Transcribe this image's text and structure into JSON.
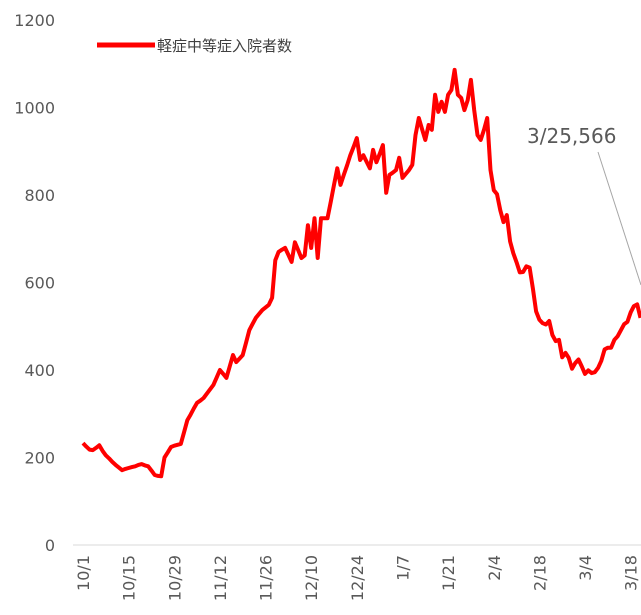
{
  "chart_data": {
    "type": "line",
    "categories": [
      "10/1",
      null,
      null,
      null,
      null,
      null,
      null,
      null,
      null,
      null,
      null,
      null,
      null,
      null,
      "10/15",
      null,
      null,
      null,
      null,
      null,
      null,
      null,
      null,
      null,
      null,
      null,
      null,
      null,
      "10/29",
      null,
      null,
      null,
      null,
      null,
      null,
      null,
      null,
      null,
      null,
      null,
      null,
      null,
      "11/12",
      null,
      null,
      null,
      null,
      null,
      null,
      null,
      null,
      null,
      null,
      null,
      null,
      null,
      "11/26",
      null,
      null,
      null,
      null,
      null,
      null,
      null,
      null,
      null,
      null,
      null,
      null,
      null,
      "12/10",
      null,
      null,
      null,
      null,
      null,
      null,
      null,
      null,
      null,
      null,
      null,
      null,
      null,
      "12/24",
      null,
      null,
      null,
      null,
      null,
      null,
      null,
      null,
      null,
      null,
      null,
      null,
      null,
      "1/7",
      null,
      null,
      null,
      null,
      null,
      null,
      null,
      null,
      null,
      null,
      null,
      null,
      null,
      "1/21",
      null,
      null,
      null,
      null,
      null,
      null,
      null,
      null,
      null,
      null,
      null,
      null,
      null,
      "2/4",
      null,
      null,
      null,
      null,
      null,
      null,
      null,
      null,
      null,
      null,
      null,
      null,
      null,
      "2/18",
      null,
      null,
      null,
      null,
      null,
      null,
      null,
      null,
      null,
      null,
      null,
      null,
      null,
      "3/4",
      null,
      null,
      null,
      null,
      null,
      null,
      null,
      null,
      null,
      null,
      null,
      null,
      null,
      "3/18",
      null,
      null,
      null
    ],
    "series": [
      {
        "name": "軽症中等症入院者数",
        "color": "#ff0000",
        "values": [
          233,
          225,
          218,
          217,
          222,
          228,
          215,
          205,
          198,
          190,
          183,
          177,
          171,
          174,
          176,
          178,
          180,
          183,
          185,
          182,
          180,
          170,
          160,
          158,
          157,
          200,
          212,
          224,
          227,
          229,
          231,
          258,
          285,
          298,
          312,
          325,
          330,
          336,
          346,
          356,
          366,
          383,
          400,
          391,
          382,
          408,
          434,
          418,
          426,
          434,
          462,
          491,
          505,
          519,
          528,
          537,
          543,
          549,
          565,
          651,
          670,
          675,
          679,
          663,
          647,
          692,
          674,
          656,
          662,
          731,
          679,
          747,
          656,
          747,
          747,
          747,
          785,
          823,
          861,
          823,
          846,
          868,
          891,
          910,
          930,
          880,
          891,
          876,
          861,
          903,
          875,
          894,
          914,
          805,
          846,
          851,
          857,
          885,
          839,
          848,
          857,
          869,
          937,
          976,
          951,
          926,
          960,
          949,
          1029,
          990,
          1013,
          990,
          1029,
          1040,
          1086,
          1029,
          1022,
          994,
          1017,
          1063,
          994,
          937,
          926,
          949,
          976,
          857,
          811,
          802,
          765,
          738,
          754,
          694,
          667,
          646,
          623,
          624,
          637,
          634,
          586,
          534,
          515,
          507,
          504,
          512,
          480,
          466,
          469,
          429,
          439,
          428,
          403,
          416,
          424,
          408,
          391,
          399,
          393,
          395,
          405,
          421,
          447,
          451,
          451,
          469,
          477,
          491,
          505,
          510,
          532,
          546,
          550,
          519
        ]
      }
    ],
    "ylim": [
      0,
      1200
    ],
    "yticks": [
      0,
      200,
      400,
      600,
      800,
      1000,
      1200
    ],
    "annotation": "3/25,566",
    "legend": "top-left",
    "grid": false
  }
}
